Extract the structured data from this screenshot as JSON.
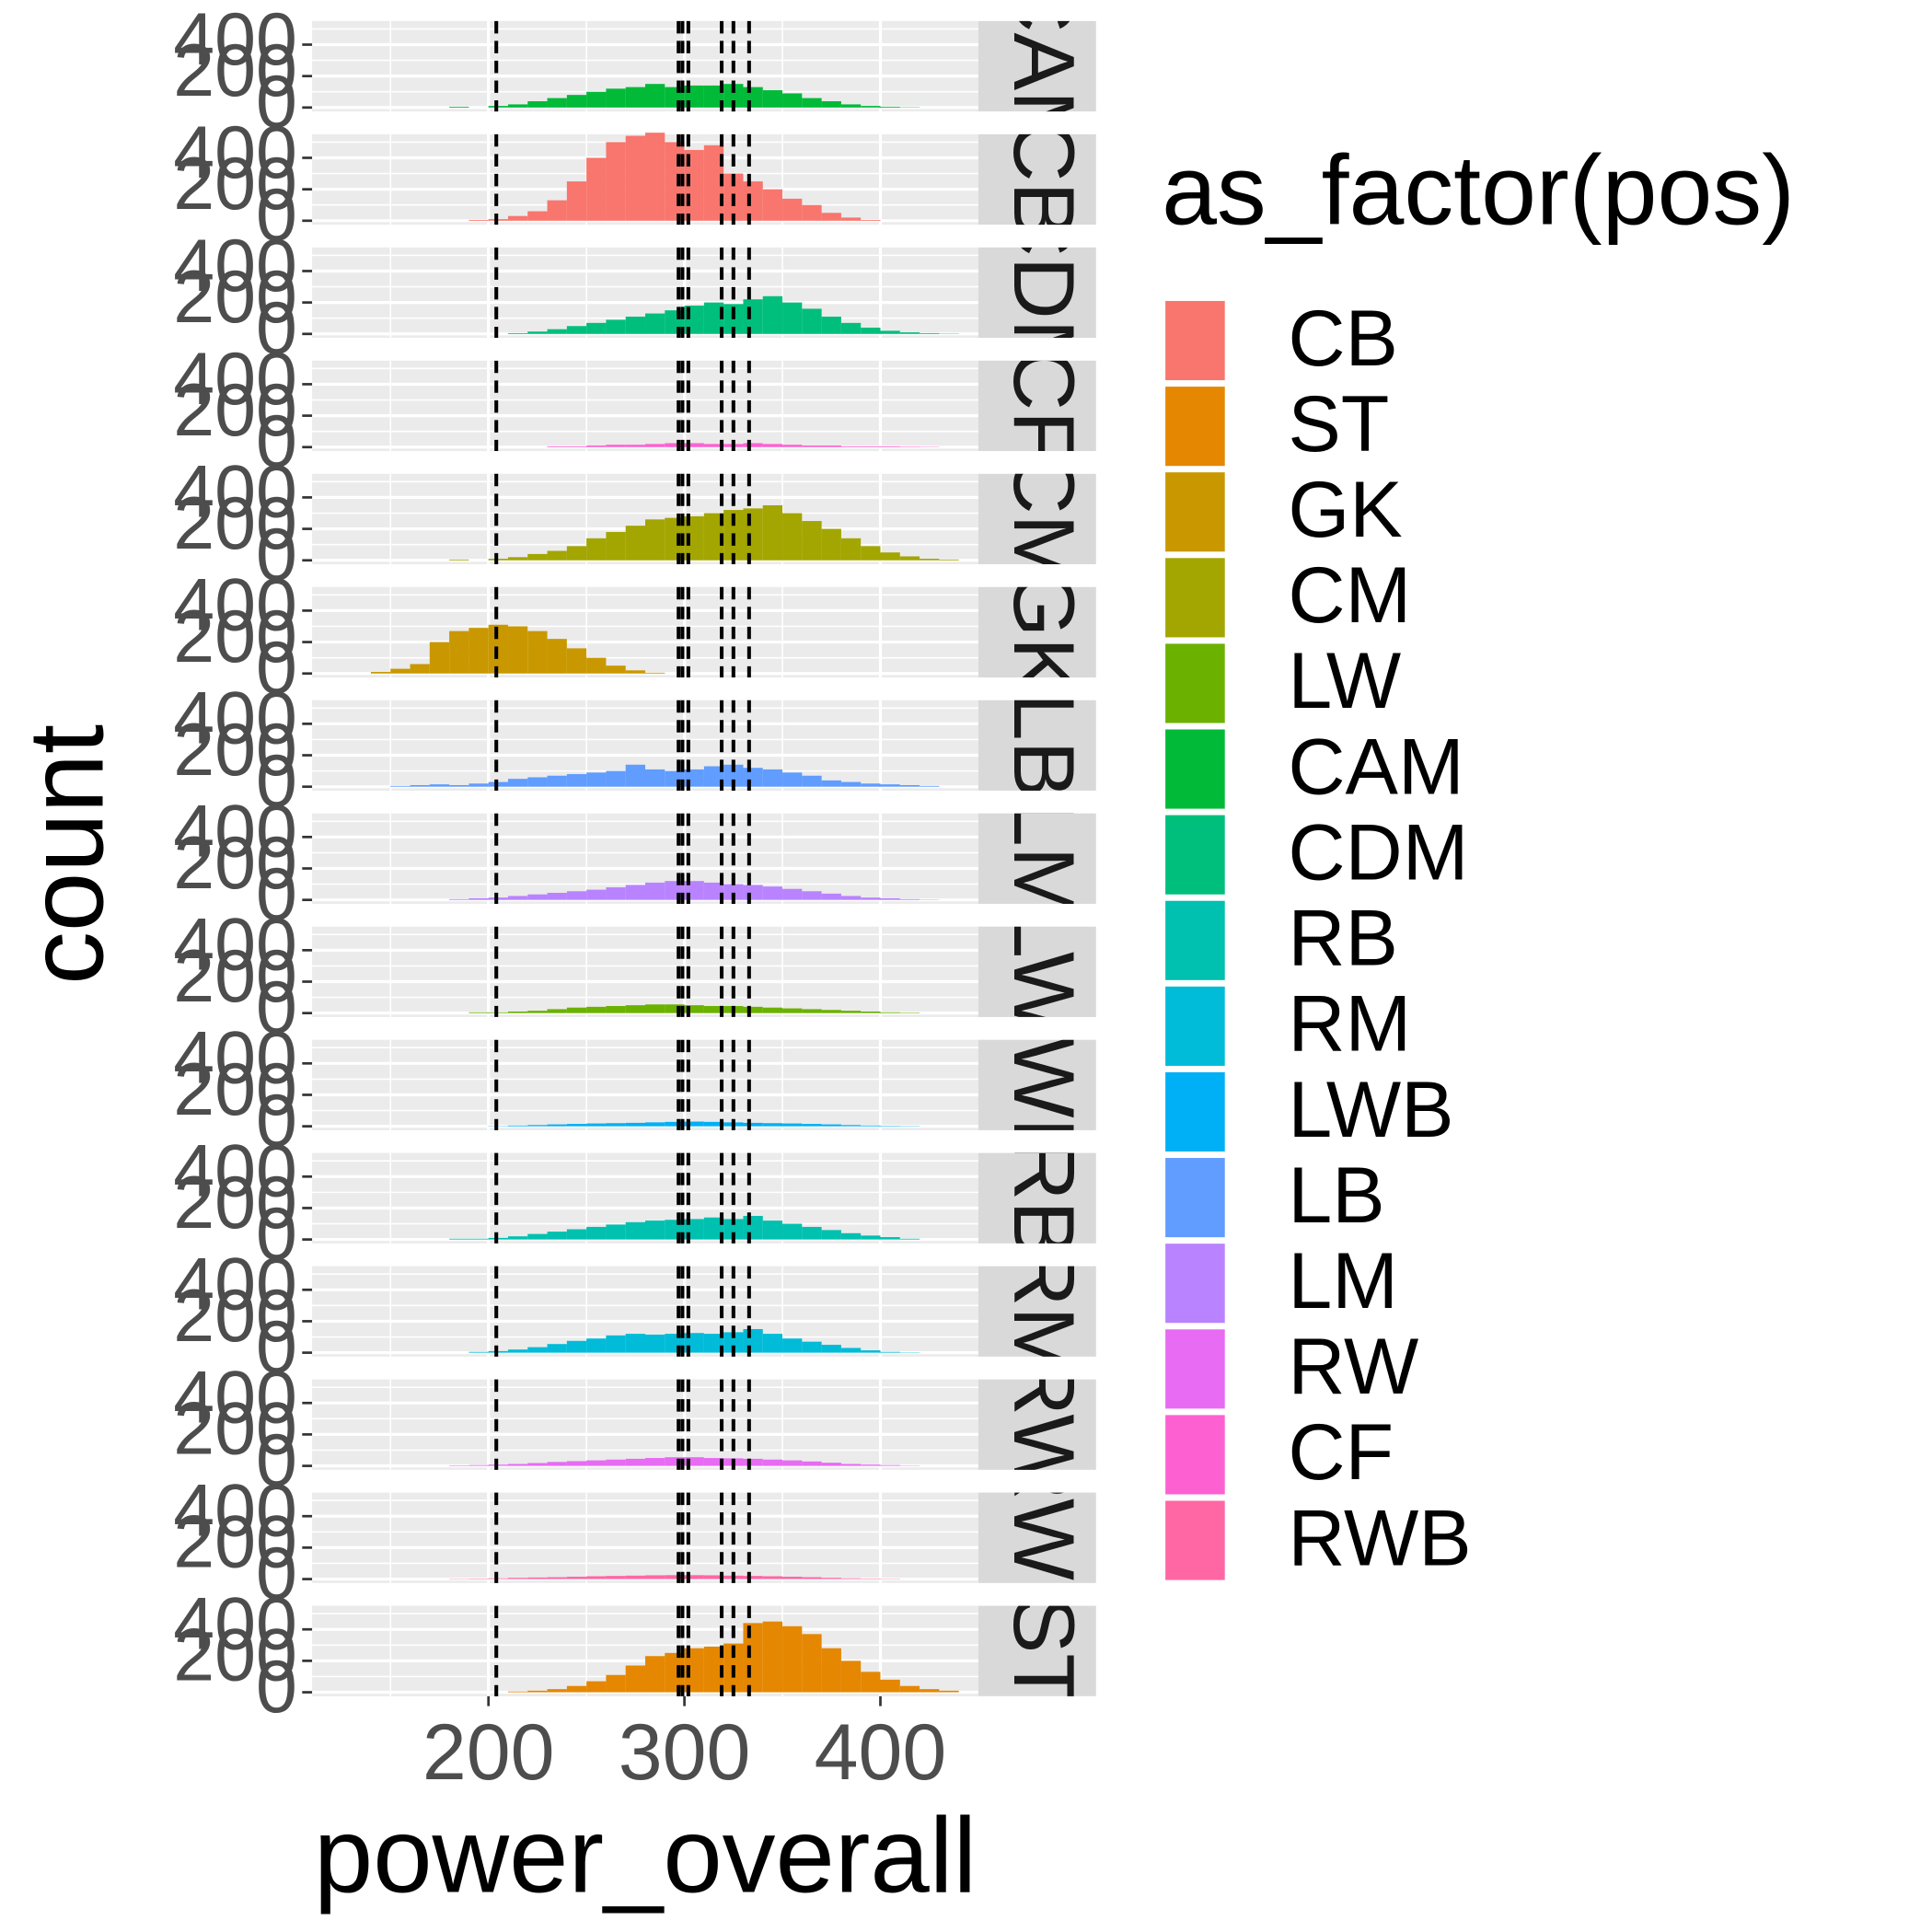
{
  "chart_data": {
    "type": "histogram",
    "x_label": "power_overall",
    "y_label": "count",
    "legend_title": "as_factor(pos)",
    "bins": [
      140,
      150,
      160,
      170,
      180,
      190,
      200,
      210,
      220,
      230,
      240,
      250,
      260,
      270,
      280,
      290,
      300,
      310,
      320,
      330,
      340,
      350,
      360,
      370,
      380,
      390,
      400,
      410,
      420,
      430,
      440
    ],
    "xlim": [
      110,
      450
    ],
    "xticks": [
      200,
      300,
      400
    ],
    "ylim": [
      -25,
      550
    ],
    "yticks": [
      0,
      200,
      400
    ],
    "grid": true,
    "vlines": [
      204,
      297,
      299,
      302,
      319,
      325,
      333
    ],
    "series": [
      {
        "name": "CB",
        "color": "#F8766D",
        "values": [
          0,
          0,
          0,
          0,
          0,
          5,
          10,
          30,
          60,
          130,
          250,
          400,
          500,
          540,
          560,
          500,
          450,
          480,
          300,
          250,
          200,
          140,
          100,
          50,
          20,
          5,
          0,
          0,
          0,
          0
        ]
      },
      {
        "name": "ST",
        "color": "#E58700",
        "values": [
          0,
          0,
          0,
          0,
          0,
          0,
          0,
          5,
          10,
          20,
          40,
          70,
          110,
          170,
          230,
          250,
          280,
          290,
          310,
          440,
          450,
          420,
          370,
          280,
          200,
          130,
          80,
          40,
          20,
          10
        ]
      },
      {
        "name": "GK",
        "color": "#C99800",
        "values": [
          10,
          30,
          60,
          200,
          270,
          290,
          310,
          300,
          270,
          220,
          160,
          100,
          50,
          20,
          5,
          0,
          0,
          0,
          0,
          0,
          0,
          0,
          0,
          0,
          0,
          0,
          0,
          0,
          0,
          0
        ]
      },
      {
        "name": "CM",
        "color": "#A3A500",
        "values": [
          0,
          0,
          0,
          0,
          5,
          0,
          10,
          20,
          40,
          60,
          90,
          140,
          180,
          220,
          260,
          270,
          280,
          300,
          320,
          330,
          350,
          300,
          250,
          200,
          140,
          90,
          50,
          25,
          10,
          5
        ]
      },
      {
        "name": "LW",
        "color": "#6BB100",
        "values": [
          0,
          0,
          0,
          0,
          0,
          5,
          5,
          10,
          15,
          25,
          35,
          40,
          45,
          50,
          55,
          55,
          50,
          45,
          45,
          40,
          35,
          30,
          25,
          20,
          15,
          10,
          5,
          3,
          0,
          0
        ]
      },
      {
        "name": "CAM",
        "color": "#00BA38",
        "values": [
          0,
          0,
          0,
          0,
          5,
          0,
          10,
          20,
          40,
          60,
          80,
          100,
          120,
          130,
          150,
          130,
          140,
          140,
          150,
          130,
          110,
          90,
          60,
          40,
          20,
          10,
          5,
          2,
          0,
          0
        ]
      },
      {
        "name": "CDM",
        "color": "#00BF7D",
        "values": [
          0,
          0,
          0,
          0,
          0,
          0,
          0,
          5,
          15,
          30,
          50,
          70,
          90,
          110,
          130,
          150,
          180,
          200,
          190,
          220,
          240,
          200,
          160,
          110,
          70,
          40,
          20,
          10,
          5,
          2
        ]
      },
      {
        "name": "RB",
        "color": "#00C0AF",
        "values": [
          0,
          0,
          0,
          0,
          5,
          5,
          10,
          20,
          35,
          50,
          65,
          80,
          95,
          110,
          120,
          125,
          130,
          140,
          130,
          150,
          120,
          100,
          80,
          60,
          40,
          25,
          15,
          5,
          0,
          0
        ]
      },
      {
        "name": "RM",
        "color": "#00BCD8",
        "values": [
          0,
          0,
          0,
          0,
          0,
          5,
          10,
          20,
          35,
          55,
          75,
          90,
          110,
          120,
          115,
          120,
          125,
          120,
          130,
          150,
          120,
          90,
          70,
          50,
          30,
          15,
          5,
          2,
          0,
          0
        ]
      },
      {
        "name": "LWB",
        "color": "#00B0F6",
        "values": [
          0,
          0,
          0,
          0,
          0,
          0,
          2,
          5,
          8,
          12,
          15,
          18,
          20,
          22,
          25,
          28,
          30,
          28,
          25,
          22,
          20,
          18,
          15,
          12,
          8,
          5,
          3,
          2,
          0,
          0
        ]
      },
      {
        "name": "LB",
        "color": "#619CFF",
        "values": [
          0,
          5,
          10,
          15,
          10,
          20,
          30,
          50,
          60,
          70,
          80,
          90,
          100,
          140,
          110,
          100,
          110,
          130,
          140,
          120,
          110,
          90,
          70,
          40,
          30,
          20,
          15,
          10,
          5,
          0
        ]
      },
      {
        "name": "LM",
        "color": "#B983FF",
        "values": [
          0,
          0,
          0,
          0,
          5,
          10,
          15,
          25,
          35,
          45,
          55,
          65,
          80,
          95,
          110,
          120,
          120,
          110,
          100,
          95,
          85,
          70,
          55,
          40,
          25,
          15,
          10,
          5,
          2,
          0
        ]
      },
      {
        "name": "RW",
        "color": "#E76BF3",
        "values": [
          0,
          0,
          0,
          0,
          3,
          5,
          8,
          12,
          18,
          25,
          30,
          35,
          40,
          45,
          50,
          55,
          55,
          50,
          48,
          45,
          40,
          35,
          28,
          20,
          12,
          8,
          5,
          2,
          0,
          0
        ]
      },
      {
        "name": "CF",
        "color": "#FD61D1",
        "values": [
          0,
          0,
          0,
          0,
          0,
          0,
          0,
          0,
          0,
          5,
          5,
          10,
          15,
          15,
          20,
          25,
          25,
          20,
          20,
          25,
          20,
          15,
          10,
          10,
          5,
          5,
          5,
          3,
          2,
          0
        ]
      },
      {
        "name": "RWB",
        "color": "#FF67A4",
        "values": [
          0,
          0,
          0,
          0,
          2,
          3,
          5,
          8,
          10,
          12,
          15,
          18,
          20,
          22,
          24,
          25,
          25,
          24,
          22,
          20,
          18,
          15,
          12,
          8,
          5,
          3,
          2,
          0,
          0,
          0
        ]
      }
    ]
  }
}
